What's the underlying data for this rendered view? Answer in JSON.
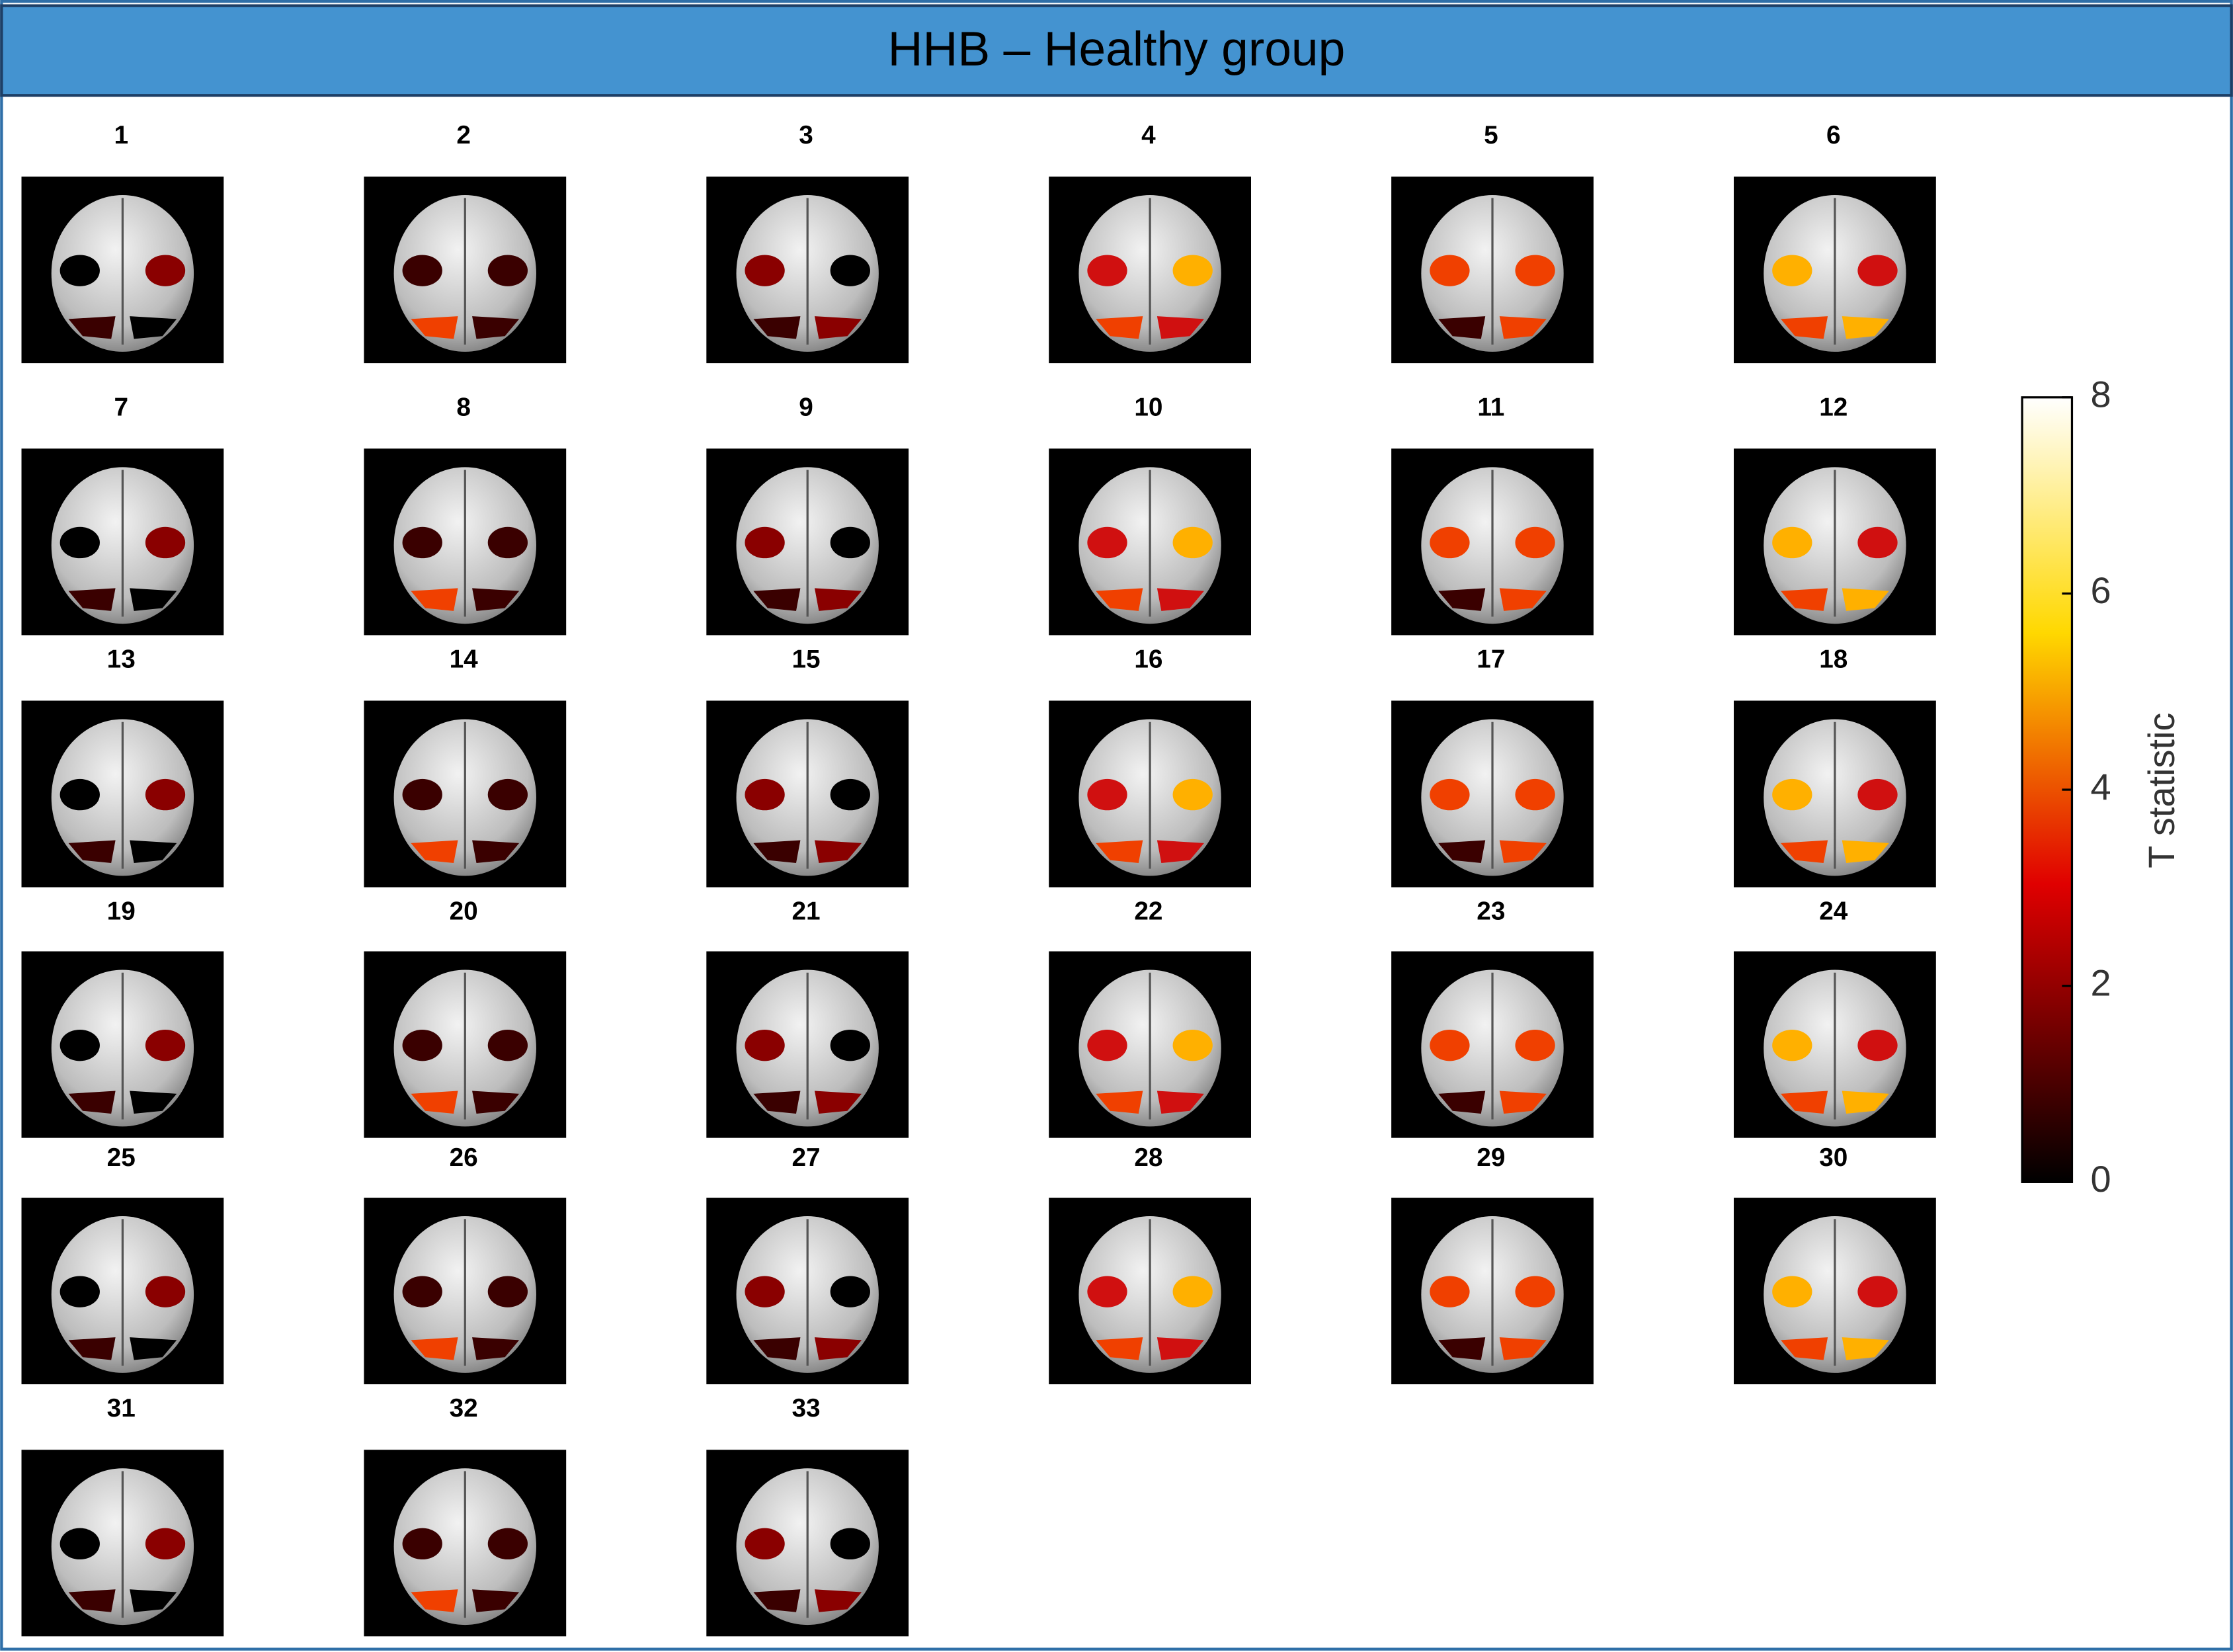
{
  "header": {
    "title": "HHB – Healthy group"
  },
  "panels": [
    "1",
    "2",
    "3",
    "4",
    "5",
    "6",
    "7",
    "8",
    "9",
    "10",
    "11",
    "12",
    "13",
    "14",
    "15",
    "16",
    "17",
    "18",
    "19",
    "20",
    "21",
    "22",
    "23",
    "24",
    "25",
    "26",
    "27",
    "28",
    "29",
    "30",
    "31",
    "32",
    "33"
  ],
  "colorbar": {
    "label": "T statistic",
    "lim": [
      0,
      8
    ],
    "ticks": [
      0,
      2,
      4,
      6,
      8
    ]
  }
}
